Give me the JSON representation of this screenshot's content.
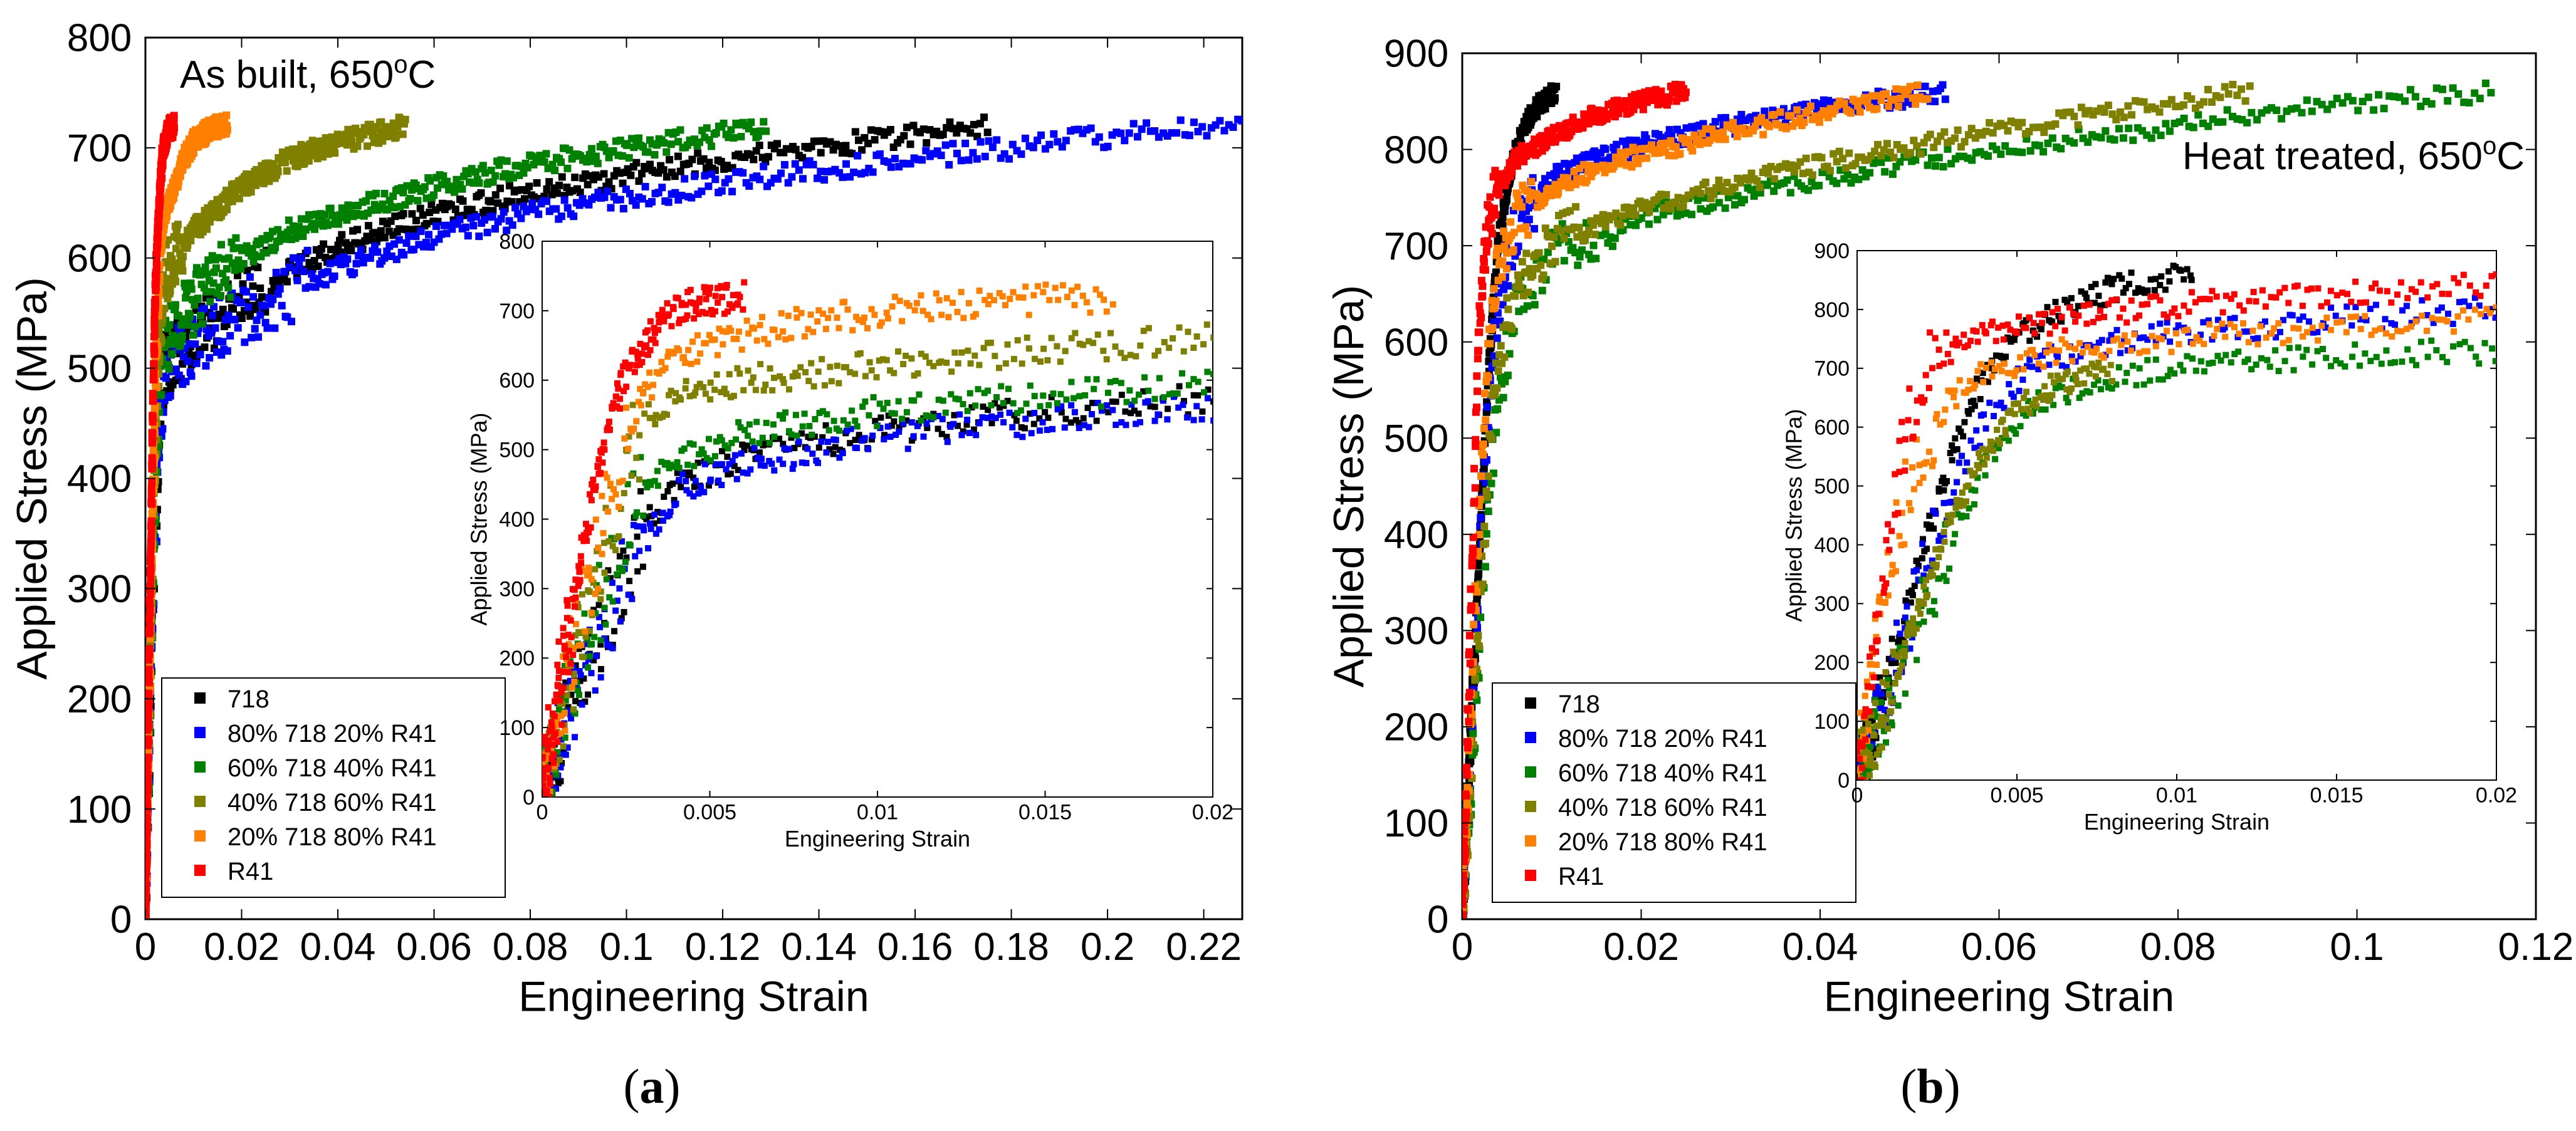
{
  "figure": {
    "panel_labels": [
      {
        "open": "(",
        "letter": "a",
        "close": ")"
      },
      {
        "open": "(",
        "letter": "b",
        "close": ")"
      }
    ]
  },
  "chart_data": [
    {
      "id": "a-main",
      "type": "scatter",
      "annotation": {
        "text": "As built, 650",
        "sup": "o",
        "tail": "C"
      },
      "xlabel": "Engineering Strain",
      "ylabel": "Applied Stress (MPa)",
      "xlim": [
        0,
        0.228
      ],
      "ylim": [
        0,
        800
      ],
      "xticks": [
        0,
        0.02,
        0.04,
        0.06,
        0.08,
        0.1,
        0.12,
        0.14,
        0.16,
        0.18,
        0.2,
        0.22
      ],
      "xticklabels": [
        "0",
        "0.02",
        "0.04",
        "0.06",
        "0.08",
        "0.1",
        "0.12",
        "0.14",
        "0.16",
        "0.18",
        "0.2",
        "0.22"
      ],
      "yticks": [
        0,
        100,
        200,
        300,
        400,
        500,
        600,
        700,
        800
      ],
      "yticklabels": [
        "0",
        "100",
        "200",
        "300",
        "400",
        "500",
        "600",
        "700",
        "800"
      ],
      "legend_position": "bottom-left",
      "series": [
        {
          "name": "718",
          "color": "#000000",
          "x": [
            0,
            0.001,
            0.002,
            0.003,
            0.004,
            0.006,
            0.01,
            0.02,
            0.04,
            0.06,
            0.08,
            0.1,
            0.12,
            0.14,
            0.16,
            0.175
          ],
          "y": [
            0,
            180,
            350,
            450,
            500,
            515,
            530,
            565,
            610,
            640,
            660,
            675,
            690,
            700,
            712,
            720
          ]
        },
        {
          "name": "80% 718 20% R41",
          "color": "#0000FF",
          "x": [
            0,
            0.001,
            0.002,
            0.003,
            0.004,
            0.006,
            0.01,
            0.02,
            0.04,
            0.06,
            0.08,
            0.1,
            0.12,
            0.14,
            0.16,
            0.18,
            0.2,
            0.228
          ],
          "y": [
            0,
            170,
            340,
            440,
            490,
            505,
            520,
            550,
            590,
            620,
            640,
            655,
            668,
            680,
            690,
            700,
            710,
            720
          ]
        },
        {
          "name": "60% 718 40% R41",
          "color": "#008000",
          "x": [
            0,
            0.001,
            0.002,
            0.003,
            0.004,
            0.006,
            0.01,
            0.02,
            0.03,
            0.04,
            0.06,
            0.08,
            0.1,
            0.12,
            0.129
          ],
          "y": [
            0,
            200,
            380,
            480,
            520,
            540,
            560,
            600,
            625,
            640,
            665,
            685,
            700,
            712,
            720
          ]
        },
        {
          "name": "40% 718 60% R41",
          "color": "#808000",
          "x": [
            0,
            0.001,
            0.002,
            0.003,
            0.004,
            0.006,
            0.01,
            0.02,
            0.03,
            0.04,
            0.05,
            0.054
          ],
          "y": [
            0,
            230,
            420,
            540,
            580,
            600,
            625,
            665,
            690,
            705,
            715,
            720
          ]
        },
        {
          "name": "20% 718 80% R41",
          "color": "#FF8000",
          "x": [
            0,
            0.001,
            0.002,
            0.003,
            0.004,
            0.006,
            0.008,
            0.01,
            0.012,
            0.014,
            0.016,
            0.017
          ],
          "y": [
            0,
            250,
            470,
            600,
            640,
            665,
            690,
            705,
            712,
            718,
            720,
            720
          ]
        },
        {
          "name": "R41",
          "color": "#FF0000",
          "x": [
            0,
            0.0005,
            0.001,
            0.0015,
            0.002,
            0.0025,
            0.003,
            0.0035,
            0.004,
            0.0045,
            0.005,
            0.006
          ],
          "y": [
            0,
            150,
            300,
            450,
            560,
            620,
            660,
            690,
            705,
            712,
            718,
            720
          ]
        }
      ]
    },
    {
      "id": "a-inset",
      "type": "scatter",
      "xlabel": "Engineering Strain",
      "ylabel": "Applied Stress (MPa)",
      "xlim": [
        0,
        0.02
      ],
      "ylim": [
        0,
        800
      ],
      "xticks": [
        0,
        0.005,
        0.01,
        0.015,
        0.02
      ],
      "xticklabels": [
        "0",
        "0.005",
        "0.01",
        "0.015",
        "0.02"
      ],
      "yticks": [
        0,
        100,
        200,
        300,
        400,
        500,
        600,
        700,
        800
      ],
      "yticklabels": [
        "0",
        "100",
        "200",
        "300",
        "400",
        "500",
        "600",
        "700",
        "800"
      ],
      "series": [
        {
          "name": "718",
          "color": "#000000",
          "x": [
            0,
            0.001,
            0.002,
            0.003,
            0.004,
            0.006,
            0.008,
            0.01,
            0.012,
            0.015,
            0.018,
            0.02
          ],
          "y": [
            0,
            150,
            270,
            390,
            450,
            490,
            510,
            525,
            540,
            555,
            568,
            575
          ]
        },
        {
          "name": "80% 718 20% R41",
          "color": "#0000FF",
          "x": [
            0,
            0.001,
            0.002,
            0.003,
            0.004,
            0.006,
            0.008,
            0.01,
            0.012,
            0.015,
            0.018,
            0.02
          ],
          "y": [
            0,
            140,
            260,
            370,
            440,
            480,
            500,
            515,
            528,
            540,
            552,
            560
          ]
        },
        {
          "name": "60% 718 40% R41",
          "color": "#008000",
          "x": [
            0,
            0.001,
            0.002,
            0.003,
            0.004,
            0.006,
            0.008,
            0.01,
            0.012,
            0.015,
            0.018,
            0.02
          ],
          "y": [
            0,
            180,
            320,
            440,
            490,
            520,
            540,
            555,
            565,
            578,
            588,
            595
          ]
        },
        {
          "name": "40% 718 60% R41",
          "color": "#808000",
          "x": [
            0,
            0.001,
            0.002,
            0.003,
            0.004,
            0.006,
            0.008,
            0.01,
            0.012,
            0.015,
            0.018,
            0.02
          ],
          "y": [
            0,
            210,
            390,
            540,
            580,
            600,
            612,
            622,
            632,
            645,
            655,
            660
          ]
        },
        {
          "name": "20% 718 80% R41",
          "color": "#FF8000",
          "x": [
            0,
            0.001,
            0.002,
            0.003,
            0.004,
            0.005,
            0.006,
            0.008,
            0.01,
            0.012,
            0.014,
            0.016,
            0.017
          ],
          "y": [
            0,
            230,
            430,
            580,
            630,
            650,
            665,
            685,
            698,
            708,
            714,
            718,
            720
          ]
        },
        {
          "name": "R41",
          "color": "#FF0000",
          "x": [
            0,
            0.0005,
            0.001,
            0.0015,
            0.002,
            0.0025,
            0.003,
            0.0035,
            0.004,
            0.0045,
            0.005,
            0.0055,
            0.006
          ],
          "y": [
            0,
            150,
            300,
            430,
            540,
            610,
            650,
            680,
            700,
            710,
            715,
            718,
            720
          ]
        }
      ]
    },
    {
      "id": "b-main",
      "type": "scatter",
      "annotation": {
        "text": "Heat treated, 650",
        "sup": "o",
        "tail": "C"
      },
      "xlabel": "Engineering Strain",
      "ylabel": "Applied Stress (MPa)",
      "xlim": [
        0,
        0.12
      ],
      "ylim": [
        0,
        900
      ],
      "xticks": [
        0,
        0.02,
        0.04,
        0.06,
        0.08,
        0.1,
        0.12
      ],
      "xticklabels": [
        "0",
        "0.02",
        "0.04",
        "0.06",
        "0.08",
        "0.1",
        "0.12"
      ],
      "yticks": [
        0,
        100,
        200,
        300,
        400,
        500,
        600,
        700,
        800,
        900
      ],
      "yticklabels": [
        "0",
        "100",
        "200",
        "300",
        "400",
        "500",
        "600",
        "700",
        "800",
        "900"
      ],
      "legend_position": "bottom-left",
      "series": [
        {
          "name": "718",
          "color": "#000000",
          "x": [
            0,
            0.001,
            0.002,
            0.003,
            0.004,
            0.005,
            0.006,
            0.007,
            0.008,
            0.009,
            0.0105
          ],
          "y": [
            0,
            200,
            400,
            580,
            700,
            760,
            800,
            825,
            840,
            850,
            860
          ]
        },
        {
          "name": "80% 718 20% R41",
          "color": "#0000FF",
          "x": [
            0,
            0.001,
            0.002,
            0.003,
            0.004,
            0.006,
            0.01,
            0.015,
            0.02,
            0.03,
            0.04,
            0.05,
            0.054
          ],
          "y": [
            0,
            180,
            380,
            540,
            640,
            720,
            770,
            790,
            805,
            825,
            842,
            855,
            860
          ]
        },
        {
          "name": "60% 718 40% R41",
          "color": "#008000",
          "x": [
            0,
            0.001,
            0.002,
            0.003,
            0.004,
            0.006,
            0.01,
            0.02,
            0.04,
            0.06,
            0.08,
            0.1,
            0.115
          ],
          "y": [
            0,
            140,
            300,
            440,
            540,
            640,
            690,
            730,
            770,
            800,
            825,
            848,
            860
          ]
        },
        {
          "name": "40% 718 60% R41",
          "color": "#808000",
          "x": [
            0,
            0.001,
            0.002,
            0.003,
            0.004,
            0.006,
            0.01,
            0.02,
            0.04,
            0.06,
            0.08,
            0.088
          ],
          "y": [
            0,
            160,
            330,
            480,
            580,
            660,
            700,
            740,
            785,
            820,
            850,
            860
          ]
        },
        {
          "name": "20% 718 80% R41",
          "color": "#FF8000",
          "x": [
            0,
            0.001,
            0.002,
            0.003,
            0.004,
            0.006,
            0.01,
            0.015,
            0.02,
            0.03,
            0.04,
            0.05,
            0.052
          ],
          "y": [
            0,
            220,
            440,
            600,
            680,
            730,
            760,
            780,
            795,
            818,
            838,
            856,
            860
          ]
        },
        {
          "name": "R41",
          "color": "#FF0000",
          "x": [
            0,
            0.0005,
            0.001,
            0.0015,
            0.002,
            0.003,
            0.004,
            0.006,
            0.01,
            0.015,
            0.02,
            0.025
          ],
          "y": [
            0,
            150,
            330,
            500,
            640,
            730,
            760,
            790,
            815,
            835,
            850,
            860
          ]
        }
      ]
    },
    {
      "id": "b-inset",
      "type": "scatter",
      "xlabel": "Engineering Strain",
      "ylabel": "Applied Stress (MPa)",
      "xlim": [
        0,
        0.02
      ],
      "ylim": [
        0,
        900
      ],
      "xticks": [
        0,
        0.005,
        0.01,
        0.015,
        0.02
      ],
      "xticklabels": [
        "0",
        "0.005",
        "0.01",
        "0.015",
        "0.02"
      ],
      "yticks": [
        0,
        100,
        200,
        300,
        400,
        500,
        600,
        700,
        800,
        900
      ],
      "yticklabels": [
        "0",
        "100",
        "200",
        "300",
        "400",
        "500",
        "600",
        "700",
        "800",
        "900"
      ],
      "series": [
        {
          "name": "718",
          "color": "#000000",
          "x": [
            0,
            0.001,
            0.002,
            0.003,
            0.004,
            0.005,
            0.006,
            0.007,
            0.008,
            0.009,
            0.0105
          ],
          "y": [
            0,
            180,
            380,
            560,
            690,
            750,
            790,
            815,
            835,
            850,
            860
          ]
        },
        {
          "name": "80% 718 20% R41",
          "color": "#0000FF",
          "x": [
            0,
            0.001,
            0.002,
            0.003,
            0.004,
            0.005,
            0.006,
            0.008,
            0.01,
            0.012,
            0.015,
            0.018,
            0.02
          ],
          "y": [
            0,
            160,
            340,
            500,
            610,
            680,
            715,
            745,
            760,
            770,
            782,
            795,
            800
          ]
        },
        {
          "name": "60% 718 40% R41",
          "color": "#008000",
          "x": [
            0,
            0.001,
            0.002,
            0.003,
            0.004,
            0.005,
            0.006,
            0.008,
            0.01,
            0.012,
            0.015,
            0.018,
            0.02
          ],
          "y": [
            0,
            120,
            270,
            420,
            530,
            610,
            650,
            685,
            700,
            710,
            720,
            727,
            730
          ]
        },
        {
          "name": "40% 718 60% R41",
          "color": "#808000",
          "x": [
            0,
            0.001,
            0.002,
            0.003,
            0.004,
            0.005,
            0.006,
            0.008
          ],
          "y": [
            0,
            140,
            300,
            450,
            560,
            630,
            665,
            700
          ]
        },
        {
          "name": "20% 718 80% R41",
          "color": "#FF8000",
          "x": [
            0,
            0.0005,
            0.001,
            0.002,
            0.003,
            0.004,
            0.005,
            0.006,
            0.008,
            0.01,
            0.012,
            0.015,
            0.018,
            0.02
          ],
          "y": [
            0,
            200,
            380,
            560,
            650,
            690,
            710,
            725,
            740,
            750,
            758,
            768,
            778,
            785
          ]
        },
        {
          "name": "R41",
          "color": "#FF0000",
          "x": [
            0,
            0.0005,
            0.001,
            0.0015,
            0.002,
            0.003,
            0.004,
            0.005,
            0.006,
            0.008,
            0.01,
            0.012,
            0.015,
            0.018,
            0.02
          ],
          "y": [
            0,
            200,
            420,
            580,
            680,
            730,
            755,
            770,
            780,
            795,
            805,
            815,
            828,
            838,
            845
          ]
        }
      ]
    }
  ]
}
